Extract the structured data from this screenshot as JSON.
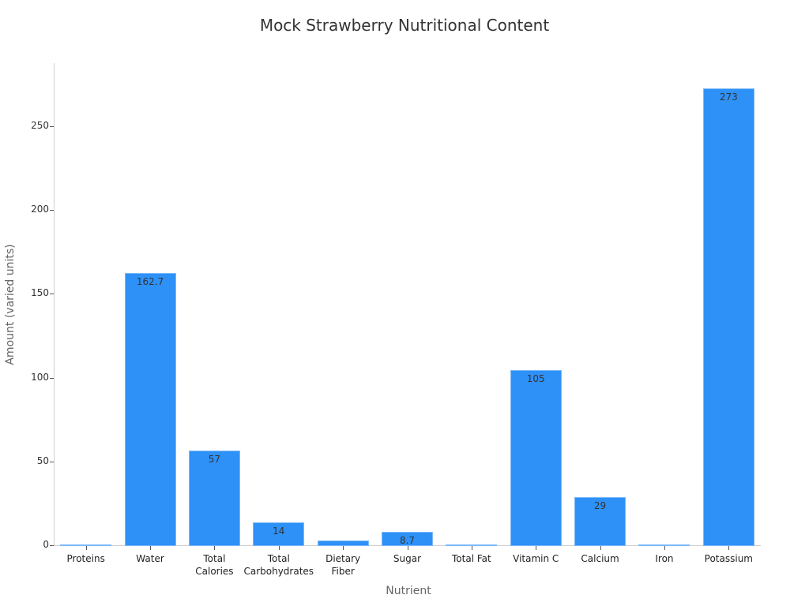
{
  "chart_data": {
    "type": "bar",
    "title": "Mock Strawberry Nutritional Content",
    "xlabel": "Nutrient",
    "ylabel": "Amount (varied units)",
    "categories": [
      "Proteins",
      "Water",
      "Total Calories",
      "Total Carbohydrates",
      "Dietary Fiber",
      "Sugar",
      "Total Fat",
      "Vitamin C",
      "Calcium",
      "Iron",
      "Potassium"
    ],
    "values": [
      1.0,
      162.7,
      57,
      14,
      3.3,
      8.7,
      0.5,
      105,
      29,
      0.6,
      273
    ],
    "data_labels": [
      "",
      "162.7",
      "57",
      "14",
      "",
      "8.7",
      "",
      "105",
      "29",
      "",
      "273"
    ],
    "ylim": [
      0,
      287
    ],
    "yticks": [
      0,
      50,
      100,
      150,
      200,
      250
    ],
    "grid": false,
    "legend": null,
    "bar_color": "#2E91F7"
  },
  "x_tick_lines": [
    [
      "Proteins"
    ],
    [
      "Water"
    ],
    [
      "Total",
      "Calories"
    ],
    [
      "Total",
      "Carbohydrates"
    ],
    [
      "Dietary",
      "Fiber"
    ],
    [
      "Sugar"
    ],
    [
      "Total Fat"
    ],
    [
      "Vitamin C"
    ],
    [
      "Calcium"
    ],
    [
      "Iron"
    ],
    [
      "Potassium"
    ]
  ]
}
